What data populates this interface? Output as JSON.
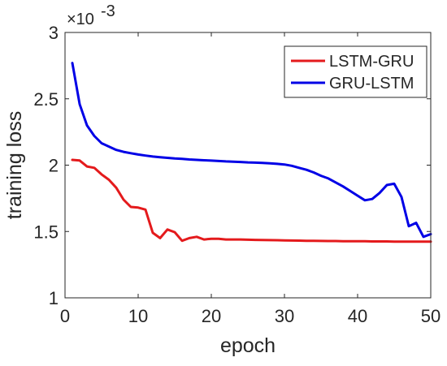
{
  "chart_data": {
    "type": "line",
    "title": "",
    "xlabel": "epoch",
    "ylabel": "training loss",
    "xlim": [
      0,
      50
    ],
    "ylim": [
      1,
      3
    ],
    "y_scale_multiplier": "×10",
    "y_scale_exponent": "-3",
    "xticks": [
      0,
      10,
      20,
      30,
      40,
      50
    ],
    "xtick_labels": [
      "0",
      "10",
      "20",
      "30",
      "40",
      "50"
    ],
    "yticks": [
      1,
      1.5,
      2,
      2.5,
      3
    ],
    "ytick_labels": [
      "1",
      "1.5",
      "2",
      "2.5",
      "3"
    ],
    "grid": false,
    "legend_position": "top-right",
    "series": [
      {
        "name": "LSTM-GRU",
        "color": "#e41a1c",
        "x": [
          1,
          2,
          3,
          4,
          5,
          6,
          7,
          8,
          9,
          10,
          11,
          12,
          13,
          14,
          15,
          16,
          17,
          18,
          19,
          20,
          21,
          22,
          23,
          24,
          25,
          26,
          27,
          28,
          29,
          30,
          31,
          32,
          33,
          34,
          35,
          36,
          37,
          38,
          39,
          40,
          41,
          42,
          43,
          44,
          45,
          46,
          47,
          48,
          49,
          50
        ],
        "values": [
          2.04,
          2.035,
          1.99,
          1.98,
          1.93,
          1.89,
          1.83,
          1.74,
          1.685,
          1.68,
          1.665,
          1.49,
          1.45,
          1.515,
          1.495,
          1.43,
          1.45,
          1.46,
          1.44,
          1.445,
          1.445,
          1.44,
          1.44,
          1.44,
          1.438,
          1.437,
          1.436,
          1.435,
          1.434,
          1.433,
          1.432,
          1.431,
          1.43,
          1.43,
          1.429,
          1.428,
          1.428,
          1.427,
          1.427,
          1.426,
          1.426,
          1.425,
          1.425,
          1.425,
          1.424,
          1.424,
          1.424,
          1.424,
          1.423,
          1.423
        ]
      },
      {
        "name": "GRU-LSTM",
        "color": "#0000e6",
        "x": [
          1,
          2,
          3,
          4,
          5,
          6,
          7,
          8,
          9,
          10,
          11,
          12,
          13,
          14,
          15,
          16,
          17,
          18,
          19,
          20,
          21,
          22,
          23,
          24,
          25,
          26,
          27,
          28,
          29,
          30,
          31,
          32,
          33,
          34,
          35,
          36,
          37,
          38,
          39,
          40,
          41,
          42,
          43,
          44,
          45,
          46,
          47,
          48,
          49,
          50
        ],
        "values": [
          2.77,
          2.46,
          2.3,
          2.22,
          2.165,
          2.14,
          2.115,
          2.1,
          2.09,
          2.08,
          2.072,
          2.065,
          2.06,
          2.055,
          2.05,
          2.047,
          2.043,
          2.04,
          2.037,
          2.034,
          2.031,
          2.028,
          2.026,
          2.024,
          2.021,
          2.019,
          2.017,
          2.014,
          2.01,
          2.005,
          1.995,
          1.98,
          1.965,
          1.945,
          1.92,
          1.9,
          1.87,
          1.84,
          1.805,
          1.77,
          1.735,
          1.745,
          1.79,
          1.85,
          1.86,
          1.76,
          1.54,
          1.565,
          1.46,
          1.48
        ]
      }
    ]
  }
}
